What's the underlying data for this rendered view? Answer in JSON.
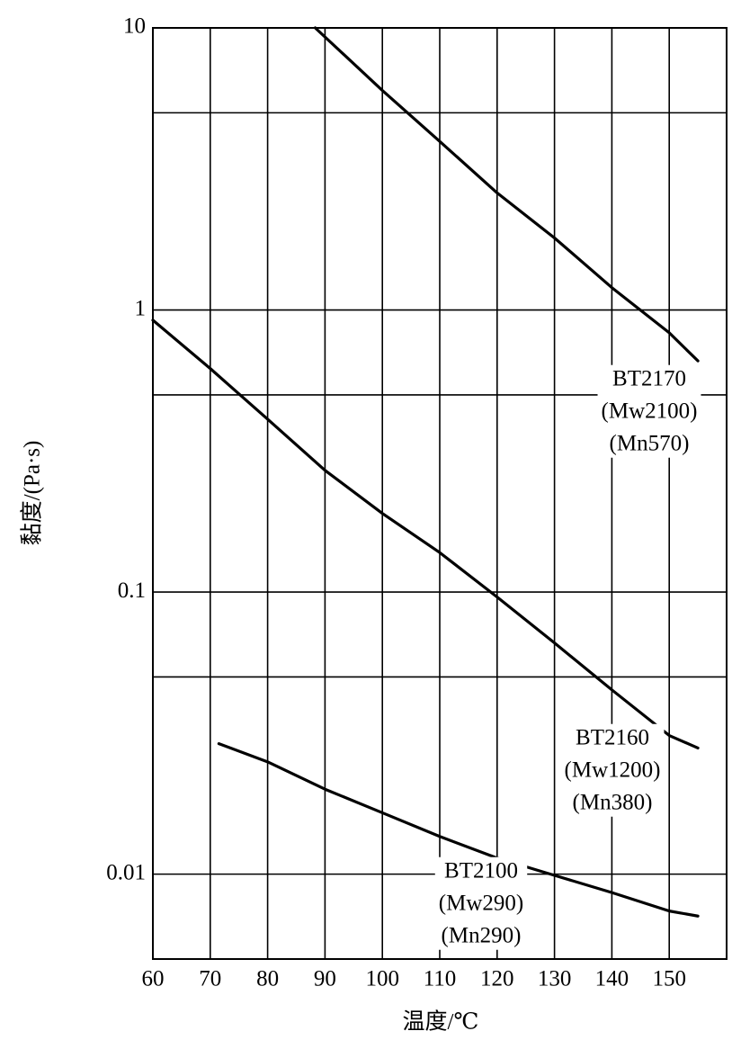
{
  "chart_data": {
    "type": "line",
    "x_label": "温度/℃",
    "y_label": "黏度/(Pa·s)",
    "y_log": true,
    "grid": true,
    "xlim": [
      60,
      160
    ],
    "xticks": [
      60,
      70,
      80,
      90,
      100,
      110,
      120,
      130,
      140,
      150
    ],
    "ylim": [
      0.005,
      10
    ],
    "yticks": [
      0.01,
      0.1,
      1,
      10
    ],
    "y_minor_grid": [
      0.05,
      0.5,
      5
    ],
    "series": [
      {
        "name": "BT2170",
        "notes": [
          "(Mw2100)",
          "(Mn570)"
        ],
        "color": "#000000",
        "x": [
          88.3,
          100,
          110,
          120,
          130,
          140,
          150,
          155
        ],
        "values": [
          10,
          6.0,
          3.96,
          2.6,
          1.8,
          1.2,
          0.83,
          0.66
        ]
      },
      {
        "name": "BT2160",
        "notes": [
          "(Mw1200)",
          "(Mn380)"
        ],
        "color": "#000000",
        "x": [
          60,
          70,
          80,
          90,
          100,
          110,
          120,
          130,
          140,
          150,
          155
        ],
        "values": [
          0.92,
          0.62,
          0.41,
          0.27,
          0.19,
          0.138,
          0.096,
          0.066,
          0.045,
          0.031,
          0.028
        ]
      },
      {
        "name": "BT2100",
        "notes": [
          "(Mw290)",
          "(Mn290)"
        ],
        "color": "#000000",
        "x": [
          71.5,
          80,
          90,
          100,
          110,
          120,
          130,
          140,
          150,
          155
        ],
        "values": [
          0.029,
          0.025,
          0.02,
          0.0165,
          0.0136,
          0.0114,
          0.0099,
          0.0086,
          0.0074,
          0.0071
        ]
      }
    ]
  }
}
